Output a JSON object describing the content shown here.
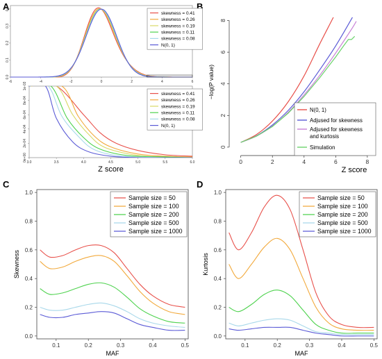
{
  "colors": {
    "red": "#e8504a",
    "orange": "#f2a93b",
    "green": "#4dd24d",
    "lightblue": "#a8d8ea",
    "blue": "#5a5ad6",
    "purple": "#c77fd6",
    "lime": "#6bd36b"
  },
  "chart_data": [
    {
      "panel": "A",
      "type": "line",
      "xlabel": "",
      "ylabel": "",
      "xlim": [
        -6,
        6
      ],
      "ylim": [
        0,
        0.4
      ],
      "xticks": [
        "-6",
        "-4",
        "-2",
        "0",
        "2",
        "4",
        "6"
      ],
      "yticks": [
        "0.0",
        "0.1",
        "0.2",
        "0.3",
        "0.4"
      ],
      "legend": [
        "skewness = 0.41",
        "skewness = 0.26",
        "skewness = 0.19",
        "skewness = 0.11",
        "skewness = 0.08",
        "N(0, 1)"
      ],
      "series": [
        {
          "name": "skewness = 0.41",
          "skew": 0.41
        },
        {
          "name": "skewness = 0.26",
          "skew": 0.26
        },
        {
          "name": "skewness = 0.19",
          "skew": 0.19
        },
        {
          "name": "skewness = 0.11",
          "skew": 0.11
        },
        {
          "name": "skewness = 0.08",
          "skew": 0.08
        },
        {
          "name": "N(0, 1)",
          "skew": 0
        }
      ]
    },
    {
      "panel": "A-zoom",
      "type": "line",
      "xlabel": "Z score",
      "ylabel": "",
      "xlim": [
        3.0,
        6.0
      ],
      "ylim": [
        0,
        0.001
      ],
      "xticks": [
        "3.0",
        "3.5",
        "4.0",
        "4.5",
        "5.0",
        "5.5",
        "6.0"
      ],
      "yticks": [
        "0e+00",
        "2e-04",
        "4e-04",
        "6e-04",
        "8e-04",
        "1e-03"
      ],
      "legend": [
        "skewness = 0.41",
        "skewness = 0.26",
        "skewness = 0.19",
        "skewness = 0.11",
        "skewness = 0.08",
        "N(0, 1)"
      ],
      "series": [
        {
          "name": "skewness = 0.41",
          "x": [
            3.0,
            3.5,
            4.0,
            4.3,
            4.6,
            5.0,
            5.5,
            6.0
          ],
          "y": [
            0.001,
            0.001,
            0.0006,
            0.00035,
            0.0002,
            0.0001,
            4e-05,
            2e-05
          ]
        },
        {
          "name": "skewness = 0.26",
          "x": [
            3.0,
            3.6,
            3.9,
            4.2,
            4.5,
            5.0,
            5.5,
            6.0
          ],
          "y": [
            0.001,
            0.001,
            0.00058,
            0.0003,
            0.00015,
            5e-05,
            2e-05,
            1e-05
          ]
        },
        {
          "name": "skewness = 0.19",
          "x": [
            3.0,
            3.5,
            3.8,
            4.1,
            4.4,
            5.0,
            5.5,
            6.0
          ],
          "y": [
            0.001,
            0.001,
            0.0006,
            0.00032,
            0.00014,
            3e-05,
            1e-05,
            0
          ]
        },
        {
          "name": "skewness = 0.11",
          "x": [
            3.0,
            3.4,
            3.7,
            4.0,
            4.3,
            4.8,
            5.5,
            6.0
          ],
          "y": [
            0.001,
            0.001,
            0.00055,
            0.00028,
            0.00012,
            3e-05,
            1e-05,
            0
          ]
        },
        {
          "name": "skewness = 0.08",
          "x": [
            3.0,
            3.35,
            3.6,
            3.9,
            4.2,
            4.7,
            5.5,
            6.0
          ],
          "y": [
            0.001,
            0.001,
            0.00058,
            0.0003,
            0.00011,
            2e-05,
            0,
            0
          ]
        },
        {
          "name": "N(0, 1)",
          "x": [
            3.0,
            3.3,
            3.5,
            3.8,
            4.1,
            4.5,
            5.0,
            6.0
          ],
          "y": [
            0.001,
            0.001,
            0.00055,
            0.00022,
            8e-05,
            2e-05,
            0,
            0
          ]
        }
      ]
    },
    {
      "panel": "B",
      "type": "line",
      "xlabel": "Z score",
      "ylabel": "−log(P value)",
      "xlim": [
        0,
        8
      ],
      "ylim": [
        0,
        8
      ],
      "xticks": [
        "0",
        "2",
        "4",
        "6",
        "8"
      ],
      "yticks": [
        "0",
        "2",
        "4",
        "6",
        "8"
      ],
      "legend": [
        "N(0, 1)",
        "Adjused for skewness",
        "Adjused for skewness and kurtosis",
        "Simulation"
      ],
      "series": [
        {
          "name": "N(0, 1)",
          "x": [
            0,
            1,
            2,
            3,
            4,
            5,
            6,
            6.6
          ],
          "y": [
            0.3,
            0.8,
            1.65,
            2.87,
            4.5,
            6.54,
            8.5,
            9.8
          ]
        },
        {
          "name": "Adjused for skewness",
          "x": [
            0,
            1,
            2,
            3,
            4,
            5,
            6,
            7,
            7.6
          ],
          "y": [
            0.3,
            0.72,
            1.4,
            2.32,
            3.5,
            4.9,
            6.4,
            8.1,
            9.2
          ]
        },
        {
          "name": "Adjused for skewness and kurtosis",
          "x": [
            0,
            1,
            2,
            3,
            4,
            5,
            6,
            7,
            7.3
          ],
          "y": [
            0.3,
            0.7,
            1.33,
            2.2,
            3.3,
            4.55,
            5.95,
            7.45,
            7.95
          ]
        },
        {
          "name": "Simulation",
          "x": [
            0,
            1,
            2,
            3,
            4,
            5,
            6,
            6.5,
            6.8,
            7.0,
            7.2
          ],
          "y": [
            0.3,
            0.7,
            1.3,
            2.15,
            3.2,
            4.4,
            5.7,
            6.4,
            6.8,
            6.8,
            7.0
          ]
        }
      ]
    },
    {
      "panel": "C",
      "type": "line",
      "xlabel": "MAF",
      "ylabel": "Skewness",
      "xlim": [
        0.05,
        0.5
      ],
      "ylim": [
        0,
        1.0
      ],
      "xticks": [
        "0.1",
        "0.2",
        "0.3",
        "0.4",
        "0.5"
      ],
      "yticks": [
        "0.0",
        "0.2",
        "0.4",
        "0.6",
        "0.8",
        "1.0"
      ],
      "legend": [
        "Sample size = 50",
        "Sample size = 100",
        "Sample size = 200",
        "Sample size = 500",
        "Sample size = 1000"
      ],
      "series": [
        {
          "name": "Sample size = 50",
          "x": [
            0.05,
            0.08,
            0.12,
            0.16,
            0.2,
            0.24,
            0.28,
            0.32,
            0.36,
            0.4,
            0.45,
            0.5
          ],
          "y": [
            0.6,
            0.55,
            0.56,
            0.6,
            0.63,
            0.63,
            0.58,
            0.47,
            0.36,
            0.28,
            0.22,
            0.2
          ]
        },
        {
          "name": "Sample size = 100",
          "x": [
            0.05,
            0.08,
            0.12,
            0.16,
            0.2,
            0.24,
            0.28,
            0.32,
            0.36,
            0.4,
            0.45,
            0.5
          ],
          "y": [
            0.52,
            0.47,
            0.48,
            0.52,
            0.55,
            0.56,
            0.52,
            0.42,
            0.31,
            0.23,
            0.17,
            0.15
          ]
        },
        {
          "name": "Sample size = 200",
          "x": [
            0.05,
            0.08,
            0.12,
            0.16,
            0.2,
            0.24,
            0.28,
            0.32,
            0.36,
            0.4,
            0.45,
            0.5
          ],
          "y": [
            0.33,
            0.29,
            0.3,
            0.33,
            0.36,
            0.37,
            0.34,
            0.27,
            0.19,
            0.14,
            0.1,
            0.09
          ]
        },
        {
          "name": "Sample size = 500",
          "x": [
            0.05,
            0.08,
            0.12,
            0.16,
            0.2,
            0.24,
            0.28,
            0.32,
            0.36,
            0.4,
            0.45,
            0.5
          ],
          "y": [
            0.2,
            0.18,
            0.18,
            0.2,
            0.22,
            0.23,
            0.21,
            0.17,
            0.12,
            0.09,
            0.07,
            0.06
          ]
        },
        {
          "name": "Sample size = 1000",
          "x": [
            0.05,
            0.08,
            0.12,
            0.16,
            0.2,
            0.24,
            0.28,
            0.32,
            0.36,
            0.4,
            0.45,
            0.5
          ],
          "y": [
            0.15,
            0.13,
            0.13,
            0.15,
            0.16,
            0.17,
            0.16,
            0.12,
            0.08,
            0.06,
            0.04,
            0.04
          ]
        }
      ]
    },
    {
      "panel": "D",
      "type": "line",
      "xlabel": "MAF",
      "ylabel": "Kurtosis",
      "xlim": [
        0.05,
        0.5
      ],
      "ylim": [
        0,
        1.0
      ],
      "xticks": [
        "0.1",
        "0.2",
        "0.3",
        "0.4",
        "0.5"
      ],
      "yticks": [
        "0.0",
        "0.2",
        "0.4",
        "0.6",
        "0.8",
        "1.0"
      ],
      "legend": [
        "Sample size = 50",
        "Sample size = 100",
        "Sample size = 200",
        "Sample size = 500",
        "Sample size = 1000"
      ],
      "series": [
        {
          "name": "Sample size = 50",
          "x": [
            0.05,
            0.08,
            0.12,
            0.16,
            0.2,
            0.24,
            0.28,
            0.32,
            0.36,
            0.4,
            0.45,
            0.5
          ],
          "y": [
            0.72,
            0.6,
            0.72,
            0.9,
            0.98,
            0.88,
            0.6,
            0.3,
            0.14,
            0.08,
            0.06,
            0.06
          ]
        },
        {
          "name": "Sample size = 100",
          "x": [
            0.05,
            0.08,
            0.12,
            0.16,
            0.2,
            0.24,
            0.28,
            0.32,
            0.36,
            0.4,
            0.45,
            0.5
          ],
          "y": [
            0.5,
            0.4,
            0.5,
            0.62,
            0.68,
            0.6,
            0.4,
            0.2,
            0.09,
            0.05,
            0.04,
            0.04
          ]
        },
        {
          "name": "Sample size = 200",
          "x": [
            0.05,
            0.08,
            0.12,
            0.16,
            0.2,
            0.24,
            0.28,
            0.32,
            0.36,
            0.4,
            0.45,
            0.5
          ],
          "y": [
            0.2,
            0.17,
            0.22,
            0.29,
            0.32,
            0.28,
            0.18,
            0.08,
            0.04,
            0.02,
            0.02,
            0.02
          ]
        },
        {
          "name": "Sample size = 500",
          "x": [
            0.05,
            0.08,
            0.12,
            0.16,
            0.2,
            0.24,
            0.28,
            0.32,
            0.36,
            0.4,
            0.45,
            0.5
          ],
          "y": [
            0.09,
            0.07,
            0.09,
            0.11,
            0.12,
            0.11,
            0.07,
            0.03,
            0.02,
            0.01,
            0.01,
            0.01
          ]
        },
        {
          "name": "Sample size = 1000",
          "x": [
            0.05,
            0.08,
            0.12,
            0.16,
            0.2,
            0.24,
            0.28,
            0.32,
            0.36,
            0.4,
            0.45,
            0.5
          ],
          "y": [
            0.05,
            0.04,
            0.05,
            0.06,
            0.06,
            0.06,
            0.04,
            0.02,
            0.01,
            0.0,
            0.0,
            0.0
          ]
        }
      ]
    }
  ]
}
